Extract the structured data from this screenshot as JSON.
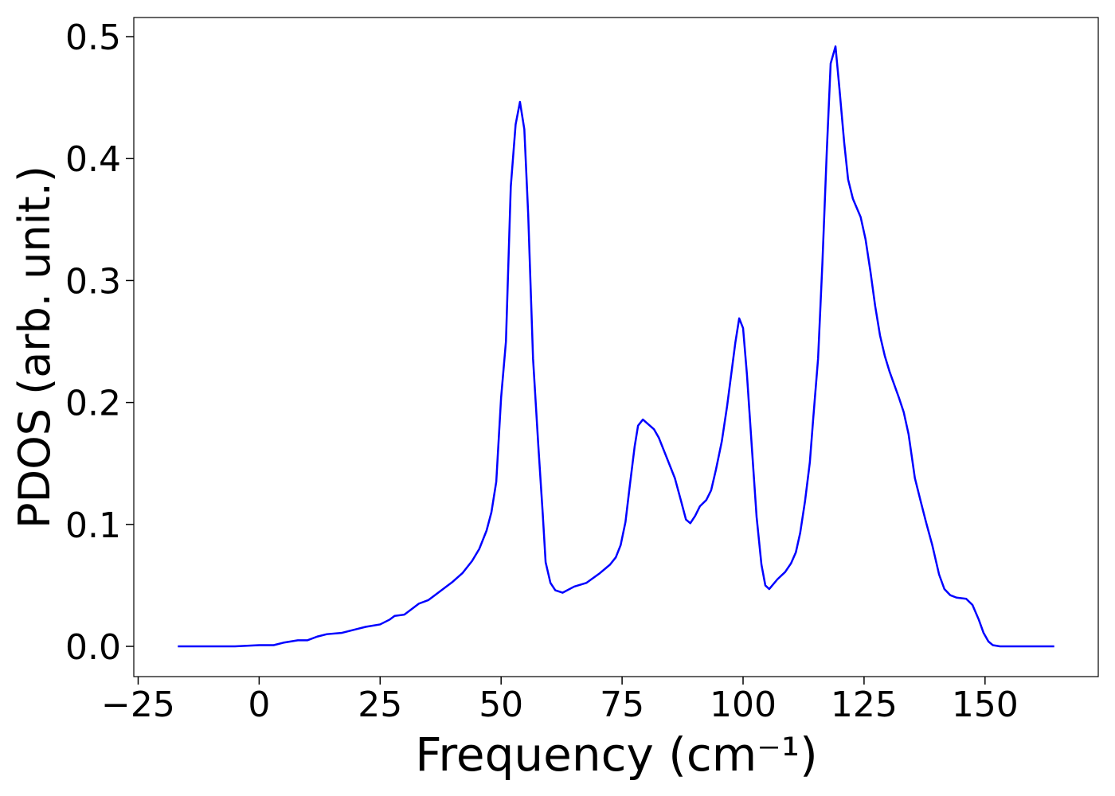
{
  "chart_data": {
    "type": "line",
    "x_label": "Frequency (cm⁻¹)",
    "y_label": "PDOS (arb. unit.)",
    "xlim": [
      -25.9,
      173.4
    ],
    "ylim": [
      -0.0248,
      0.5157
    ],
    "xticks": [
      {
        "value": -25,
        "label": "−25"
      },
      0,
      25,
      50,
      75,
      100,
      125,
      150
    ],
    "yticks": [
      {
        "value": 0,
        "label": "0.0"
      },
      0.1,
      0.2,
      0.3,
      0.4,
      0.5
    ],
    "grid": false,
    "series": [
      {
        "color": "#0000ff",
        "x": [
          -16.8,
          -5,
          0,
          3,
          5,
          8,
          10,
          12,
          14,
          17,
          20,
          22,
          25,
          27,
          28,
          30,
          32,
          33,
          35,
          37,
          40,
          42,
          44,
          45.5,
          47,
          48,
          49,
          50,
          51,
          52,
          53,
          53.9,
          54.8,
          55.6,
          56.6,
          57.7,
          58.6,
          59.2,
          60.2,
          61.2,
          62.7,
          65.1,
          67.6,
          70.4,
          72.5,
          73.7,
          74.7,
          75.7,
          76.6,
          77.6,
          78.3,
          79.3,
          81.6,
          82.6,
          83.9,
          85.9,
          87.2,
          88.2,
          89.1,
          90.1,
          91.1,
          92.4,
          93.4,
          94.4,
          95.6,
          96.7,
          98.4,
          99.2,
          100,
          100.8,
          101.8,
          102.8,
          103.8,
          104.6,
          105.4,
          107.1,
          108.7,
          109.9,
          110.9,
          111.8,
          112.8,
          113.8,
          114.5,
          115.5,
          116.4,
          117.3,
          118.1,
          119.1,
          119.9,
          120.9,
          121.7,
          122.7,
          124.3,
          125.3,
          126.3,
          127.3,
          128.3,
          129.3,
          130.3,
          132.2,
          133.2,
          134.2,
          135.5,
          136.7,
          137.8,
          139.1,
          140.5,
          141.6,
          142.8,
          144.1,
          146.1,
          147.4,
          148.7,
          149.7,
          150.7,
          151.6,
          153.1,
          164.3
        ],
        "values": [
          0,
          0,
          0.001,
          0.001,
          0.003,
          0.005,
          0.005,
          0.008,
          0.01,
          0.011,
          0.014,
          0.016,
          0.018,
          0.022,
          0.025,
          0.026,
          0.032,
          0.035,
          0.038,
          0.044,
          0.053,
          0.06,
          0.07,
          0.08,
          0.095,
          0.11,
          0.135,
          0.204,
          0.25,
          0.377,
          0.428,
          0.4465,
          0.424,
          0.354,
          0.236,
          0.164,
          0.109,
          0.069,
          0.052,
          0.046,
          0.044,
          0.049,
          0.052,
          0.06,
          0.067,
          0.073,
          0.083,
          0.102,
          0.132,
          0.164,
          0.181,
          0.186,
          0.178,
          0.171,
          0.158,
          0.138,
          0.119,
          0.104,
          0.101,
          0.107,
          0.115,
          0.12,
          0.128,
          0.145,
          0.168,
          0.197,
          0.249,
          0.269,
          0.261,
          0.223,
          0.164,
          0.106,
          0.067,
          0.05,
          0.047,
          0.055,
          0.061,
          0.068,
          0.077,
          0.093,
          0.119,
          0.151,
          0.187,
          0.236,
          0.315,
          0.406,
          0.478,
          0.492,
          0.458,
          0.413,
          0.383,
          0.367,
          0.352,
          0.334,
          0.308,
          0.279,
          0.255,
          0.238,
          0.225,
          0.204,
          0.192,
          0.174,
          0.138,
          0.119,
          0.102,
          0.083,
          0.059,
          0.047,
          0.042,
          0.04,
          0.039,
          0.034,
          0.022,
          0.011,
          0.004,
          0.001,
          0,
          0
        ]
      }
    ]
  }
}
